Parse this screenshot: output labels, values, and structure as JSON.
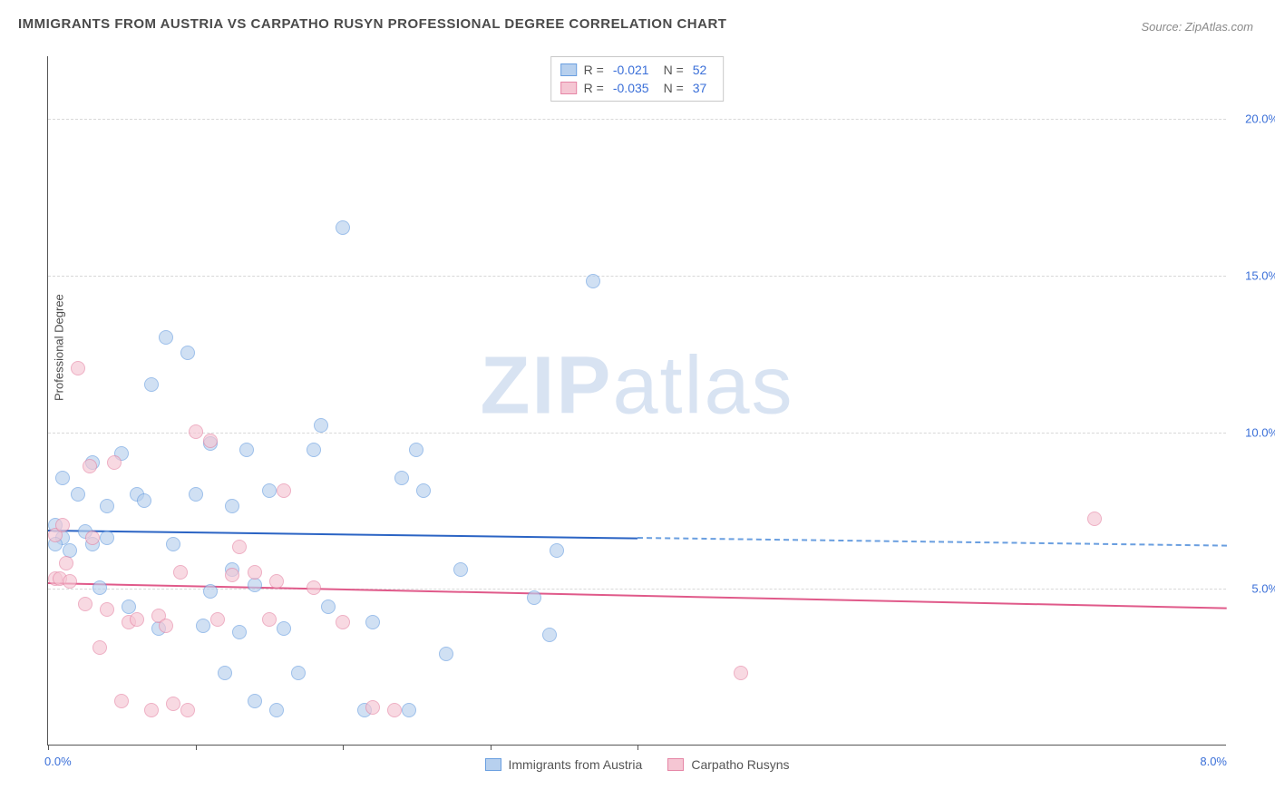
{
  "title": "IMMIGRANTS FROM AUSTRIA VS CARPATHO RUSYN PROFESSIONAL DEGREE CORRELATION CHART",
  "source": "Source: ZipAtlas.com",
  "watermark_a": "ZIP",
  "watermark_b": "atlas",
  "chart": {
    "type": "scatter",
    "ylabel": "Professional Degree",
    "x_min": 0.0,
    "x_max": 8.0,
    "y_min": 0.0,
    "y_max": 22.0,
    "y_gridlines": [
      5.0,
      10.0,
      15.0,
      20.0
    ],
    "y_tick_labels": [
      "5.0%",
      "10.0%",
      "15.0%",
      "20.0%"
    ],
    "x_ticks": [
      0,
      1,
      2,
      3,
      4
    ],
    "x_tick_labels": {
      "0": "0.0%",
      "8": "8.0%"
    },
    "background_color": "#ffffff",
    "grid_color": "#d8d8d8",
    "series": [
      {
        "id": "austria",
        "label": "Immigrants from Austria",
        "color_fill": "#b7d0ee",
        "color_stroke": "#6a9fe0",
        "marker_radius": 8,
        "fill_opacity": 0.65,
        "R": "-0.021",
        "N": "52",
        "trend": {
          "y_start": 6.9,
          "y_end": 6.4,
          "x_solid_end": 4.0,
          "solid_color": "#2b64c4",
          "dash_color": "#6a9fe0"
        },
        "points": [
          [
            0.05,
            7.0
          ],
          [
            0.1,
            6.6
          ],
          [
            0.1,
            8.5
          ],
          [
            0.15,
            6.2
          ],
          [
            0.2,
            8.0
          ],
          [
            0.25,
            6.8
          ],
          [
            0.3,
            6.4
          ],
          [
            0.3,
            9.0
          ],
          [
            0.35,
            5.0
          ],
          [
            0.4,
            7.6
          ],
          [
            0.5,
            9.3
          ],
          [
            0.55,
            4.4
          ],
          [
            0.6,
            8.0
          ],
          [
            0.65,
            7.8
          ],
          [
            0.7,
            11.5
          ],
          [
            0.75,
            3.7
          ],
          [
            0.8,
            13.0
          ],
          [
            0.85,
            6.4
          ],
          [
            0.95,
            12.5
          ],
          [
            1.0,
            8.0
          ],
          [
            1.05,
            3.8
          ],
          [
            1.1,
            9.6
          ],
          [
            1.1,
            4.9
          ],
          [
            1.2,
            2.3
          ],
          [
            1.25,
            7.6
          ],
          [
            1.25,
            5.6
          ],
          [
            1.3,
            3.6
          ],
          [
            1.35,
            9.4
          ],
          [
            1.4,
            1.4
          ],
          [
            1.4,
            5.1
          ],
          [
            1.5,
            8.1
          ],
          [
            1.55,
            1.1
          ],
          [
            1.6,
            3.7
          ],
          [
            1.7,
            2.3
          ],
          [
            1.8,
            9.4
          ],
          [
            1.85,
            10.2
          ],
          [
            1.9,
            4.4
          ],
          [
            2.0,
            16.5
          ],
          [
            2.15,
            1.1
          ],
          [
            2.2,
            3.9
          ],
          [
            2.4,
            8.5
          ],
          [
            2.45,
            1.1
          ],
          [
            2.5,
            9.4
          ],
          [
            2.55,
            8.1
          ],
          [
            2.7,
            2.9
          ],
          [
            2.8,
            5.6
          ],
          [
            3.3,
            4.7
          ],
          [
            3.4,
            3.5
          ],
          [
            3.45,
            6.2
          ],
          [
            3.7,
            14.8
          ],
          [
            0.05,
            6.4
          ],
          [
            0.4,
            6.6
          ]
        ]
      },
      {
        "id": "carpatho",
        "label": "Carpatho Rusyns",
        "color_fill": "#f5c6d3",
        "color_stroke": "#e686a6",
        "marker_radius": 8,
        "fill_opacity": 0.65,
        "R": "-0.035",
        "N": "37",
        "trend": {
          "y_start": 5.2,
          "y_end": 4.4,
          "x_solid_end": 8.0,
          "solid_color": "#e05a8a",
          "dash_color": "#e05a8a"
        },
        "points": [
          [
            0.05,
            6.7
          ],
          [
            0.05,
            5.3
          ],
          [
            0.08,
            5.3
          ],
          [
            0.1,
            7.0
          ],
          [
            0.12,
            5.8
          ],
          [
            0.15,
            5.2
          ],
          [
            0.2,
            12.0
          ],
          [
            0.25,
            4.5
          ],
          [
            0.28,
            8.9
          ],
          [
            0.3,
            6.6
          ],
          [
            0.35,
            3.1
          ],
          [
            0.4,
            4.3
          ],
          [
            0.45,
            9.0
          ],
          [
            0.5,
            1.4
          ],
          [
            0.55,
            3.9
          ],
          [
            0.6,
            4.0
          ],
          [
            0.7,
            1.1
          ],
          [
            0.75,
            4.1
          ],
          [
            0.8,
            3.8
          ],
          [
            0.85,
            1.3
          ],
          [
            0.9,
            5.5
          ],
          [
            0.95,
            1.1
          ],
          [
            1.0,
            10.0
          ],
          [
            1.1,
            9.7
          ],
          [
            1.15,
            4.0
          ],
          [
            1.25,
            5.4
          ],
          [
            1.3,
            6.3
          ],
          [
            1.4,
            5.5
          ],
          [
            1.5,
            4.0
          ],
          [
            1.55,
            5.2
          ],
          [
            1.6,
            8.1
          ],
          [
            1.8,
            5.0
          ],
          [
            2.0,
            3.9
          ],
          [
            2.2,
            1.2
          ],
          [
            2.35,
            1.1
          ],
          [
            4.7,
            2.3
          ],
          [
            7.1,
            7.2
          ]
        ]
      }
    ]
  },
  "legend_top": [
    {
      "swatch": 0,
      "R_label": "R =",
      "N_label": "N ="
    },
    {
      "swatch": 1,
      "R_label": "R =",
      "N_label": "N ="
    }
  ]
}
